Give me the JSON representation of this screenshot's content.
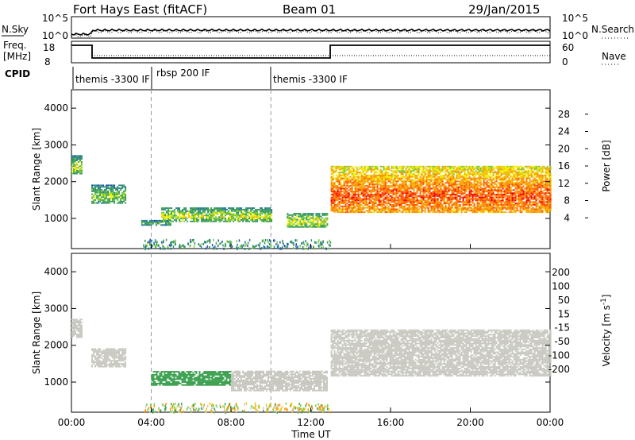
{
  "header": {
    "station": "Fort Hays East (fitACF)",
    "beam": "Beam 01",
    "date": "29/Jan/2015"
  },
  "noise_panel": {
    "left_label": "N.Sky",
    "right_label": "N.Search",
    "left_ticks": [
      "10^5",
      "10^0"
    ],
    "right_ticks": [
      "10^5",
      "10^0"
    ]
  },
  "freq_panel": {
    "left_label_1": "Freq.",
    "left_label_2": "[MHz]",
    "right_label": "Nave",
    "left_ticks": [
      "18",
      "8"
    ],
    "right_ticks": [
      "60",
      "0"
    ]
  },
  "cpid": {
    "label": "CPID",
    "segments": [
      {
        "name": "themis -3300 IF",
        "start_ut": 0.0,
        "end_ut": 4.0
      },
      {
        "name": "rbsp 200 IF",
        "start_ut": 4.0,
        "end_ut": 10.0
      },
      {
        "name": "themis -3300 IF",
        "start_ut": 10.0,
        "end_ut": 24.0
      }
    ]
  },
  "chart_data": [
    {
      "type": "heatmap",
      "title": "Power",
      "ylabel": "Slant Range [km]",
      "xlabel": "Time UT",
      "xlim": [
        0,
        24
      ],
      "ylim": [
        180,
        4500
      ],
      "x_ticks": [
        "00:00",
        "04:00",
        "08:00",
        "12:00",
        "16:00",
        "20:00",
        "00:00"
      ],
      "y_ticks": [
        1000,
        2000,
        3000,
        4000
      ],
      "colorbar": {
        "label": "Power [dB]",
        "ticks": [
          4,
          8,
          12,
          16,
          20,
          24,
          28
        ],
        "range": [
          0,
          32
        ],
        "colors": [
          "#0a1ee6",
          "#1e50b4",
          "#2878a0",
          "#2f8f6e",
          "#3ca050",
          "#78c83c",
          "#f0f000",
          "#f0b400",
          "#ff8c00",
          "#ff5000",
          "#f00000"
        ]
      },
      "echo_regions": [
        {
          "t_start": 0.0,
          "t_end": 0.5,
          "range_low": 2200,
          "range_high": 2700,
          "power_db": 10
        },
        {
          "t_start": 1.0,
          "t_end": 2.7,
          "range_low": 1400,
          "range_high": 1900,
          "power_db": 9
        },
        {
          "t_start": 3.5,
          "t_end": 5.0,
          "range_low": 800,
          "range_high": 950,
          "power_db": 6
        },
        {
          "t_start": 4.5,
          "t_end": 10.0,
          "range_low": 900,
          "range_high": 1300,
          "power_db": 10
        },
        {
          "t_start": 10.8,
          "t_end": 12.8,
          "range_low": 750,
          "range_high": 1150,
          "power_db": 11
        },
        {
          "t_start": 13.0,
          "t_end": 24.0,
          "range_low": 1150,
          "range_high": 2400,
          "power_db": 20
        }
      ]
    },
    {
      "type": "heatmap",
      "title": "Velocity",
      "ylabel": "Slant Range [km]",
      "xlabel": "Time UT",
      "xlim": [
        0,
        24
      ],
      "ylim": [
        180,
        4500
      ],
      "x_ticks": [
        "00:00",
        "04:00",
        "08:00",
        "12:00",
        "16:00",
        "20:00",
        "00:00"
      ],
      "y_ticks": [
        1000,
        2000,
        3000,
        4000
      ],
      "colorbar": {
        "label": "Velocity [m s",
        "label_sup": "-1",
        "label_end": "]",
        "ticks": [
          200,
          100,
          50,
          15,
          -15,
          -50,
          -100,
          -200
        ],
        "colors": [
          "#1a1ad0",
          "#1e5ab4",
          "#2f8f6e",
          "#3ca050",
          "#78d040",
          "#c8c8c0",
          "#f0c000",
          "#ff9000",
          "#ff5000",
          "#e80000"
        ]
      },
      "echo_regions": [
        {
          "t_start": 0.0,
          "t_end": 0.5,
          "range_low": 2200,
          "range_high": 2700,
          "velocity": 0
        },
        {
          "t_start": 1.0,
          "t_end": 2.7,
          "range_low": 1400,
          "range_high": 1900,
          "velocity": 0
        },
        {
          "t_start": 4.0,
          "t_end": 8.0,
          "range_low": 900,
          "range_high": 1300,
          "velocity": 30
        },
        {
          "t_start": 8.0,
          "t_end": 12.8,
          "range_low": 750,
          "range_high": 1300,
          "velocity": 0
        },
        {
          "t_start": 13.0,
          "t_end": 24.0,
          "range_low": 1150,
          "range_high": 2400,
          "velocity": 0
        }
      ]
    }
  ]
}
